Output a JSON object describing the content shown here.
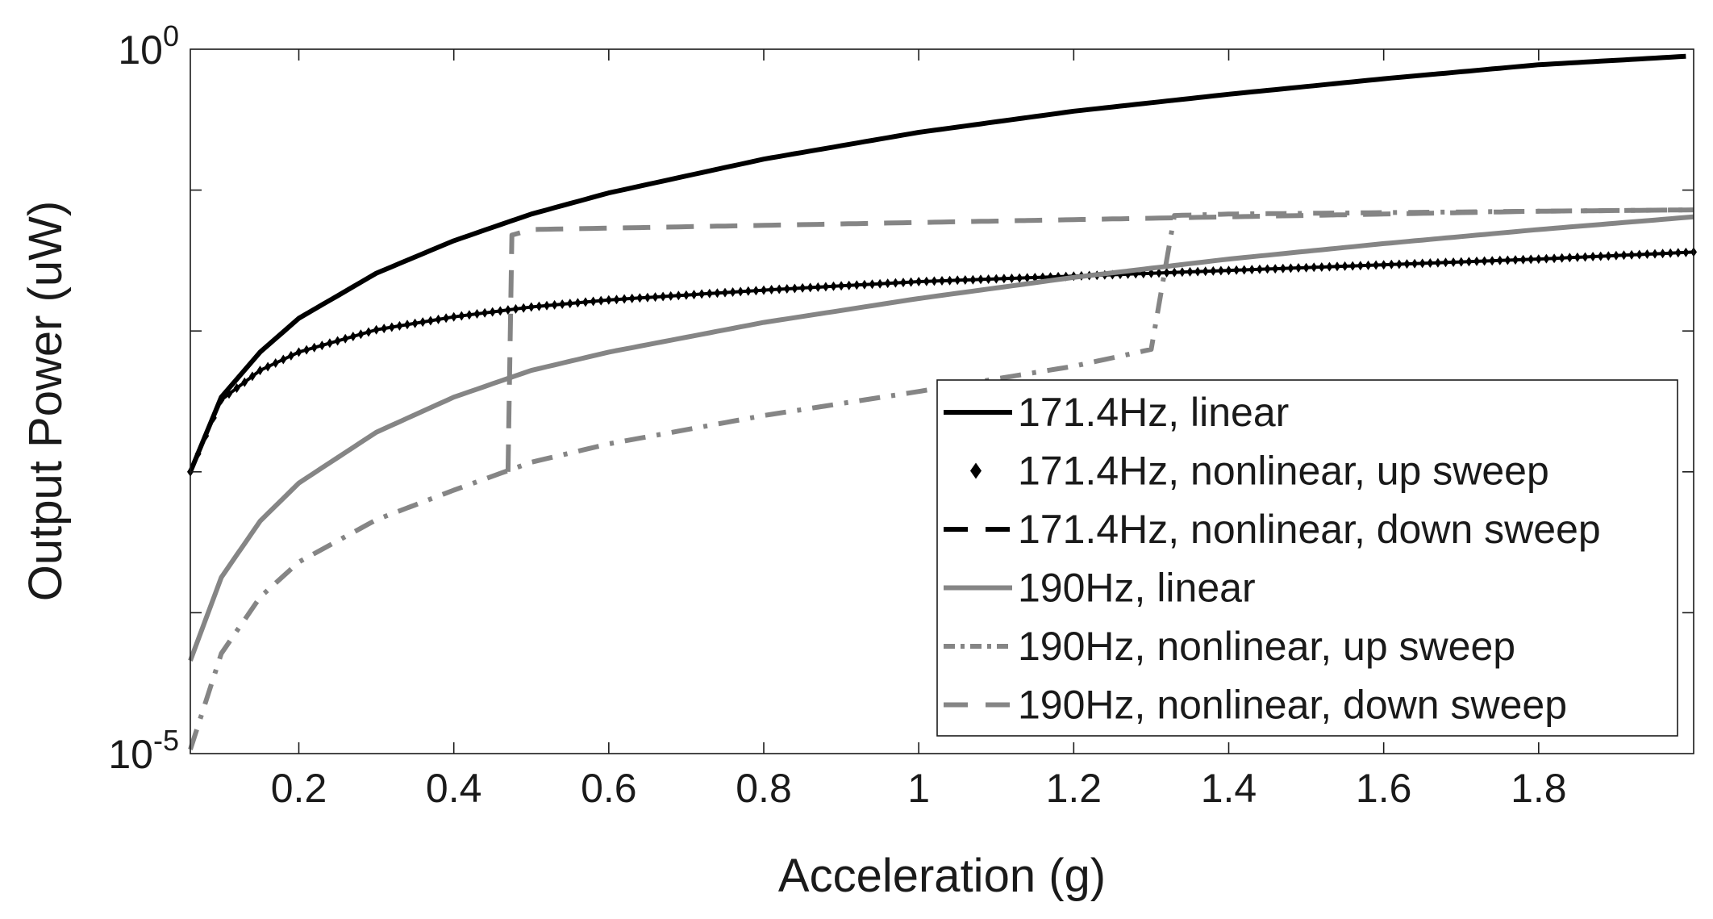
{
  "chart_data": {
    "type": "line",
    "title": "",
    "xlabel": "Acceleration (g)",
    "ylabel": "Output Power (uW)",
    "xlim": [
      0.06,
      2.0
    ],
    "ylim": [
      1e-05,
      1
    ],
    "yscale": "log",
    "grid": false,
    "legend_position": "bottom-right",
    "xticks": [
      0.2,
      0.4,
      0.6,
      0.8,
      1.0,
      1.2,
      1.4,
      1.6,
      1.8
    ],
    "xtick_labels": [
      "0.2",
      "0.4",
      "0.6",
      "0.8",
      "1",
      "1.2",
      "1.4",
      "1.6",
      "1.8"
    ],
    "yticks": [
      {
        "value": 1e-05,
        "base": "10",
        "exp": "-5"
      },
      {
        "value": 1,
        "base": "10",
        "exp": "0"
      }
    ],
    "y_minor_ticks": [
      0.0001,
      0.001,
      0.01,
      0.1
    ],
    "series": [
      {
        "name": "171.4Hz, linear",
        "color": "#000000",
        "style": "solid",
        "x": [
          0.06,
          0.1,
          0.15,
          0.2,
          0.3,
          0.4,
          0.5,
          0.6,
          0.8,
          1.0,
          1.2,
          1.4,
          1.6,
          1.8,
          1.99
        ],
        "y": [
          0.001,
          0.00339,
          0.00708,
          0.0123,
          0.0257,
          0.0437,
          0.0676,
          0.0955,
          0.166,
          0.257,
          0.363,
          0.479,
          0.617,
          0.776,
          0.891
        ]
      },
      {
        "name": "171.4Hz, nonlinear, up sweep",
        "color": "#000000",
        "style": "diamond",
        "x": [
          0.06,
          0.1,
          0.15,
          0.2,
          0.3,
          0.4,
          0.5,
          0.6,
          0.8,
          1.0,
          1.2,
          1.4,
          1.6,
          1.8,
          2.0
        ],
        "y": [
          0.001,
          0.00324,
          0.00525,
          0.00708,
          0.0102,
          0.0126,
          0.0148,
          0.0166,
          0.0195,
          0.0224,
          0.0245,
          0.0269,
          0.0295,
          0.0324,
          0.0363
        ]
      },
      {
        "name": "171.4Hz, nonlinear, down sweep",
        "color": "#000000",
        "style": "dashed",
        "x": [],
        "y": []
      },
      {
        "name": "190Hz, linear",
        "color": "#858585",
        "style": "solid",
        "x": [
          0.06,
          0.1,
          0.15,
          0.2,
          0.3,
          0.4,
          0.5,
          0.6,
          0.8,
          1.0,
          1.2,
          1.4,
          1.6,
          1.8,
          2.0
        ],
        "y": [
          4.57e-05,
          0.000178,
          0.000447,
          0.000832,
          0.00191,
          0.00339,
          0.00525,
          0.00708,
          0.0115,
          0.017,
          0.024,
          0.0324,
          0.0417,
          0.0525,
          0.0646
        ]
      },
      {
        "name": "190Hz, nonlinear, up sweep",
        "color": "#858585",
        "style": "dashdot",
        "x": [
          0.06,
          0.1,
          0.15,
          0.2,
          0.3,
          0.4,
          0.5,
          0.6,
          0.8,
          1.0,
          1.2,
          1.3,
          1.33,
          1.4,
          1.6,
          1.8,
          2.0
        ],
        "y": [
          1.07e-05,
          5.13e-05,
          0.000129,
          0.000229,
          0.000457,
          0.000741,
          0.00117,
          0.00158,
          0.00251,
          0.00372,
          0.00562,
          0.0074,
          0.066,
          0.0676,
          0.0692,
          0.0708,
          0.0724
        ]
      },
      {
        "name": "190Hz, nonlinear, down sweep",
        "color": "#858585",
        "style": "dashed",
        "x": [
          0.47,
          0.475,
          0.5,
          0.6,
          0.8,
          1.0,
          1.2,
          1.4,
          1.6,
          1.8,
          2.0
        ],
        "y": [
          0.001,
          0.0479,
          0.0525,
          0.0537,
          0.0562,
          0.0589,
          0.0617,
          0.0646,
          0.0676,
          0.0708,
          0.0724
        ]
      }
    ]
  }
}
